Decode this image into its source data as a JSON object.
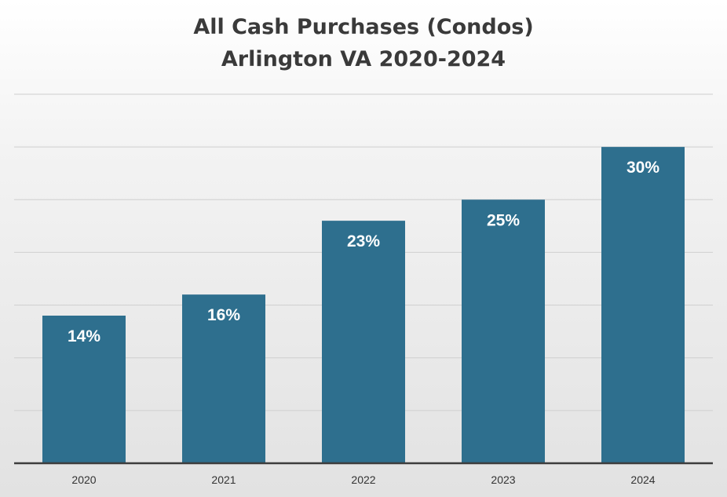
{
  "chart_data": {
    "type": "bar",
    "title": "All Cash Purchases (Condos)",
    "subtitle": "Arlington VA 2020-2024",
    "xlabel": "",
    "ylabel": "",
    "categories": [
      "2020",
      "2021",
      "2022",
      "2023",
      "2024"
    ],
    "values": [
      14,
      16,
      23,
      25,
      30
    ],
    "data_labels": [
      "14%",
      "16%",
      "23%",
      "25%",
      "30%"
    ],
    "ylim": [
      0,
      35
    ],
    "y_gridline_step": 5,
    "grid": true,
    "legend": "none",
    "bar_color": "#2e6f8e"
  }
}
